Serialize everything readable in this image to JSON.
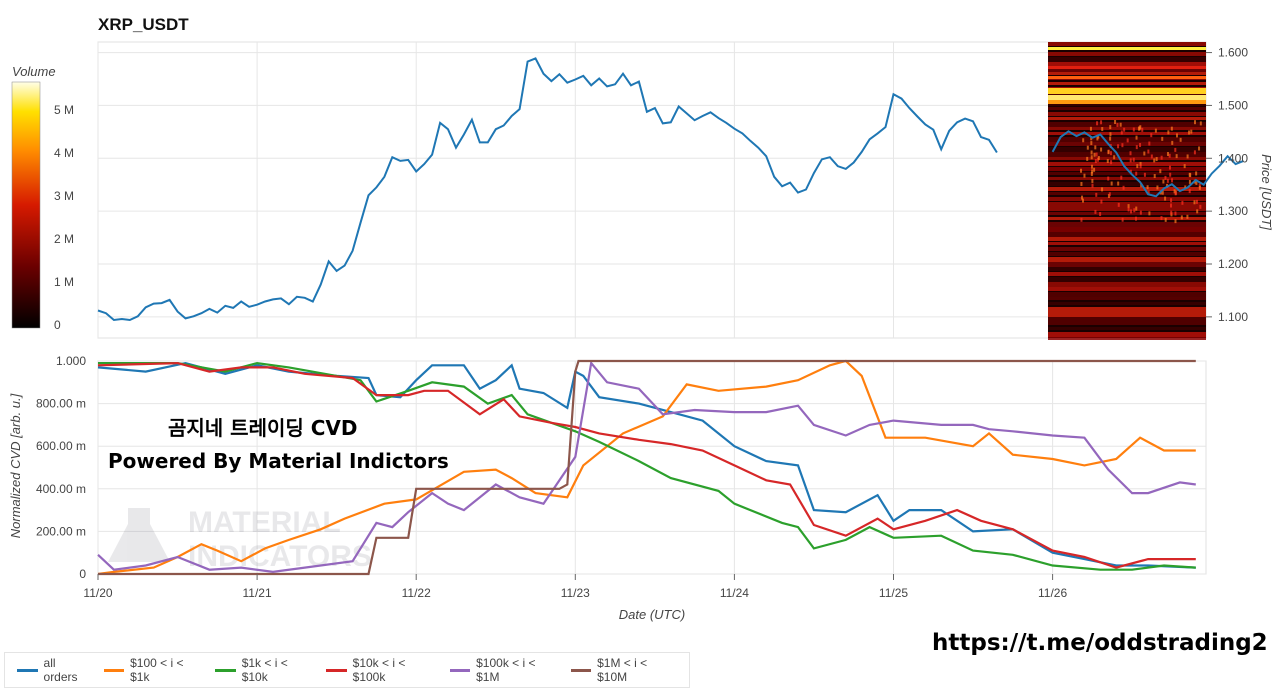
{
  "colors": {
    "price_line": "#1f77b4",
    "grid": "#e6e6e6",
    "heatmap_low": "#000000",
    "heatmap_mid": "#c00000",
    "heatmap_high": "#ffff80"
  },
  "header": {
    "title": "XRP_USDT"
  },
  "overlay": {
    "line1": "곰지네 트레이딩 CVD",
    "line2": "Powered By Material Indictors"
  },
  "footer": {
    "telegram": "https://t.me/oddstrading2"
  },
  "watermark_logo": "MATERIAL INDICATORS",
  "chart_data": [
    {
      "type": "line",
      "title": "XRP_USDT",
      "ylabel": "Price [USDT]",
      "ylim": [
        1.06,
        1.62
      ],
      "yticks": [
        "1.100",
        "1.200",
        "1.300",
        "1.400",
        "1.500",
        "1.600"
      ],
      "colorbar": {
        "label": "Volume",
        "ticks": [
          "0",
          "1 M",
          "2 M",
          "3 M",
          "4 M",
          "5 M"
        ]
      },
      "heatmap": "orderbook liquidity heatmap shown from 11/26 onward",
      "series": [
        {
          "x_start_day": 0,
          "x_step_day": 0.05,
          "values": [
            1.112,
            1.107,
            1.094,
            1.096,
            1.094,
            1.101,
            1.118,
            1.125,
            1.126,
            1.132,
            1.11,
            1.097,
            1.101,
            1.107,
            1.115,
            1.108,
            1.121,
            1.117,
            1.129,
            1.119,
            1.123,
            1.129,
            1.133,
            1.135,
            1.124,
            1.138,
            1.136,
            1.129,
            1.161,
            1.205,
            1.187,
            1.197,
            1.225,
            1.278,
            1.33,
            1.345,
            1.365,
            1.402,
            1.395,
            1.397,
            1.375,
            1.389,
            1.407,
            1.467,
            1.455,
            1.42,
            1.445,
            1.473,
            1.43,
            1.43,
            1.455,
            1.462,
            1.48,
            1.493,
            1.583,
            1.589,
            1.56,
            1.546,
            1.559,
            1.543,
            1.549,
            1.556,
            1.538,
            1.551,
            1.536,
            1.54,
            1.56,
            1.538,
            1.545,
            1.488,
            1.495,
            1.466,
            1.468,
            1.498,
            1.485,
            1.472,
            1.48,
            1.487,
            1.476,
            1.467,
            1.456,
            1.447,
            1.433,
            1.42,
            1.404,
            1.365,
            1.347,
            1.354,
            1.335,
            1.341,
            1.372,
            1.398,
            1.402,
            1.385,
            1.38,
            1.392,
            1.412,
            1.436,
            1.447,
            1.459,
            1.521,
            1.513,
            1.495,
            1.479,
            1.464,
            1.454,
            1.417,
            1.452,
            1.468,
            1.475,
            1.47,
            1.44,
            1.435,
            1.411
          ]
        },
        {
          "name": "price (heatmap section)",
          "x_start_day": 6.0,
          "x_step_day": 0.05,
          "values": [
            1.412,
            1.44,
            1.451,
            1.442,
            1.449,
            1.439,
            1.445,
            1.427,
            1.411,
            1.385,
            1.369,
            1.355,
            1.332,
            1.328,
            1.343,
            1.351,
            1.338,
            1.345,
            1.359,
            1.35,
            1.371,
            1.386,
            1.404,
            1.389,
            1.395
          ]
        }
      ]
    },
    {
      "type": "line",
      "xlabel": "Date (UTC)",
      "ylabel": "Normalized CVD [arb. u.]",
      "ylim": [
        0,
        1
      ],
      "yticks": [
        "0",
        "200.00 m",
        "400.00 m",
        "600.00 m",
        "800.00 m",
        "1.000"
      ],
      "categories": [
        "11/20",
        "11/21",
        "11/22",
        "11/23",
        "11/24",
        "11/25",
        "11/26"
      ],
      "legend_position": "bottom",
      "series": [
        {
          "name": "all orders",
          "color": "#1f77b4",
          "points": [
            [
              0,
              0.97
            ],
            [
              0.3,
              0.95
            ],
            [
              0.55,
              0.99
            ],
            [
              0.8,
              0.94
            ],
            [
              1.0,
              0.98
            ],
            [
              1.2,
              0.95
            ],
            [
              1.5,
              0.93
            ],
            [
              1.7,
              0.92
            ],
            [
              1.75,
              0.84
            ],
            [
              1.9,
              0.83
            ],
            [
              2.0,
              0.91
            ],
            [
              2.1,
              0.98
            ],
            [
              2.3,
              0.98
            ],
            [
              2.4,
              0.87
            ],
            [
              2.5,
              0.91
            ],
            [
              2.6,
              0.98
            ],
            [
              2.65,
              0.87
            ],
            [
              2.8,
              0.85
            ],
            [
              2.95,
              0.78
            ],
            [
              3.0,
              0.95
            ],
            [
              3.05,
              0.93
            ],
            [
              3.15,
              0.83
            ],
            [
              3.4,
              0.8
            ],
            [
              3.6,
              0.76
            ],
            [
              3.8,
              0.72
            ],
            [
              4.0,
              0.6
            ],
            [
              4.2,
              0.53
            ],
            [
              4.4,
              0.51
            ],
            [
              4.5,
              0.3
            ],
            [
              4.7,
              0.29
            ],
            [
              4.9,
              0.37
            ],
            [
              5.0,
              0.25
            ],
            [
              5.1,
              0.3
            ],
            [
              5.3,
              0.3
            ],
            [
              5.5,
              0.2
            ],
            [
              5.75,
              0.21
            ],
            [
              6.0,
              0.1
            ],
            [
              6.2,
              0.07
            ],
            [
              6.4,
              0.04
            ],
            [
              6.6,
              0.04
            ],
            [
              6.9,
              0.03
            ]
          ]
        },
        {
          "name": "$100 < i < $1k",
          "color": "#ff7f0e",
          "points": [
            [
              0,
              0.0
            ],
            [
              0.1,
              0.01
            ],
            [
              0.35,
              0.03
            ],
            [
              0.5,
              0.08
            ],
            [
              0.65,
              0.14
            ],
            [
              0.75,
              0.11
            ],
            [
              0.9,
              0.06
            ],
            [
              1.05,
              0.12
            ],
            [
              1.2,
              0.16
            ],
            [
              1.4,
              0.21
            ],
            [
              1.55,
              0.26
            ],
            [
              1.8,
              0.33
            ],
            [
              2.0,
              0.35
            ],
            [
              2.3,
              0.48
            ],
            [
              2.5,
              0.49
            ],
            [
              2.6,
              0.45
            ],
            [
              2.75,
              0.38
            ],
            [
              2.95,
              0.36
            ],
            [
              3.05,
              0.51
            ],
            [
              3.3,
              0.66
            ],
            [
              3.55,
              0.74
            ],
            [
              3.7,
              0.89
            ],
            [
              3.9,
              0.86
            ],
            [
              4.2,
              0.88
            ],
            [
              4.4,
              0.91
            ],
            [
              4.6,
              0.98
            ],
            [
              4.7,
              1.0
            ],
            [
              4.8,
              0.93
            ],
            [
              4.95,
              0.64
            ],
            [
              5.2,
              0.64
            ],
            [
              5.5,
              0.6
            ],
            [
              5.6,
              0.66
            ],
            [
              5.75,
              0.56
            ],
            [
              6.0,
              0.54
            ],
            [
              6.2,
              0.51
            ],
            [
              6.4,
              0.54
            ],
            [
              6.55,
              0.64
            ],
            [
              6.7,
              0.58
            ],
            [
              6.9,
              0.58
            ]
          ]
        },
        {
          "name": "$1k < i < $10k",
          "color": "#2ca02c",
          "points": [
            [
              0,
              0.99
            ],
            [
              0.5,
              0.99
            ],
            [
              0.8,
              0.95
            ],
            [
              1.0,
              0.99
            ],
            [
              1.2,
              0.97
            ],
            [
              1.5,
              0.93
            ],
            [
              1.65,
              0.91
            ],
            [
              1.75,
              0.81
            ],
            [
              1.95,
              0.86
            ],
            [
              2.1,
              0.9
            ],
            [
              2.3,
              0.88
            ],
            [
              2.45,
              0.8
            ],
            [
              2.6,
              0.84
            ],
            [
              2.7,
              0.75
            ],
            [
              2.85,
              0.71
            ],
            [
              3.0,
              0.67
            ],
            [
              3.15,
              0.62
            ],
            [
              3.4,
              0.53
            ],
            [
              3.6,
              0.45
            ],
            [
              3.9,
              0.39
            ],
            [
              4.0,
              0.33
            ],
            [
              4.3,
              0.24
            ],
            [
              4.4,
              0.22
            ],
            [
              4.5,
              0.12
            ],
            [
              4.7,
              0.16
            ],
            [
              4.85,
              0.22
            ],
            [
              5.0,
              0.17
            ],
            [
              5.3,
              0.18
            ],
            [
              5.5,
              0.11
            ],
            [
              5.75,
              0.09
            ],
            [
              6.0,
              0.04
            ],
            [
              6.3,
              0.02
            ],
            [
              6.5,
              0.02
            ],
            [
              6.7,
              0.04
            ],
            [
              6.9,
              0.03
            ]
          ]
        },
        {
          "name": "$10k < i < $100k",
          "color": "#d62728",
          "points": [
            [
              0,
              0.98
            ],
            [
              0.5,
              0.99
            ],
            [
              0.7,
              0.95
            ],
            [
              0.9,
              0.97
            ],
            [
              1.1,
              0.97
            ],
            [
              1.3,
              0.94
            ],
            [
              1.6,
              0.92
            ],
            [
              1.75,
              0.84
            ],
            [
              1.95,
              0.84
            ],
            [
              2.05,
              0.86
            ],
            [
              2.2,
              0.86
            ],
            [
              2.4,
              0.75
            ],
            [
              2.55,
              0.82
            ],
            [
              2.65,
              0.74
            ],
            [
              2.85,
              0.71
            ],
            [
              3.0,
              0.69
            ],
            [
              3.15,
              0.66
            ],
            [
              3.4,
              0.63
            ],
            [
              3.6,
              0.61
            ],
            [
              3.8,
              0.58
            ],
            [
              4.0,
              0.51
            ],
            [
              4.2,
              0.44
            ],
            [
              4.35,
              0.42
            ],
            [
              4.5,
              0.23
            ],
            [
              4.7,
              0.18
            ],
            [
              4.9,
              0.26
            ],
            [
              5.0,
              0.21
            ],
            [
              5.2,
              0.25
            ],
            [
              5.4,
              0.3
            ],
            [
              5.55,
              0.25
            ],
            [
              5.75,
              0.21
            ],
            [
              6.0,
              0.11
            ],
            [
              6.2,
              0.08
            ],
            [
              6.4,
              0.03
            ],
            [
              6.6,
              0.07
            ],
            [
              6.9,
              0.07
            ]
          ]
        },
        {
          "name": "$100k < i < $1M",
          "color": "#9467bd",
          "points": [
            [
              0,
              0.09
            ],
            [
              0.1,
              0.02
            ],
            [
              0.3,
              0.04
            ],
            [
              0.5,
              0.08
            ],
            [
              0.7,
              0.02
            ],
            [
              0.9,
              0.03
            ],
            [
              1.1,
              0.01
            ],
            [
              1.3,
              0.03
            ],
            [
              1.6,
              0.06
            ],
            [
              1.75,
              0.24
            ],
            [
              1.85,
              0.22
            ],
            [
              1.95,
              0.29
            ],
            [
              2.1,
              0.38
            ],
            [
              2.2,
              0.33
            ],
            [
              2.3,
              0.3
            ],
            [
              2.5,
              0.42
            ],
            [
              2.65,
              0.36
            ],
            [
              2.8,
              0.33
            ],
            [
              3.0,
              0.55
            ],
            [
              3.1,
              0.99
            ],
            [
              3.2,
              0.9
            ],
            [
              3.4,
              0.87
            ],
            [
              3.55,
              0.75
            ],
            [
              3.75,
              0.77
            ],
            [
              4.0,
              0.76
            ],
            [
              4.2,
              0.76
            ],
            [
              4.4,
              0.79
            ],
            [
              4.5,
              0.7
            ],
            [
              4.7,
              0.65
            ],
            [
              4.85,
              0.7
            ],
            [
              5.0,
              0.72
            ],
            [
              5.3,
              0.7
            ],
            [
              5.5,
              0.7
            ],
            [
              5.6,
              0.68
            ],
            [
              5.75,
              0.67
            ],
            [
              6.0,
              0.65
            ],
            [
              6.2,
              0.64
            ],
            [
              6.35,
              0.49
            ],
            [
              6.5,
              0.38
            ],
            [
              6.6,
              0.38
            ],
            [
              6.8,
              0.43
            ],
            [
              6.9,
              0.42
            ]
          ]
        },
        {
          "name": "$1M < i < $10M",
          "color": "#8c564b",
          "points": [
            [
              0,
              0.0
            ],
            [
              1.7,
              0.0
            ],
            [
              1.75,
              0.17
            ],
            [
              1.95,
              0.17
            ],
            [
              2.0,
              0.4
            ],
            [
              2.9,
              0.4
            ],
            [
              2.95,
              0.42
            ],
            [
              3.0,
              0.95
            ],
            [
              3.02,
              1.0
            ],
            [
              6.9,
              1.0
            ]
          ]
        }
      ]
    }
  ]
}
